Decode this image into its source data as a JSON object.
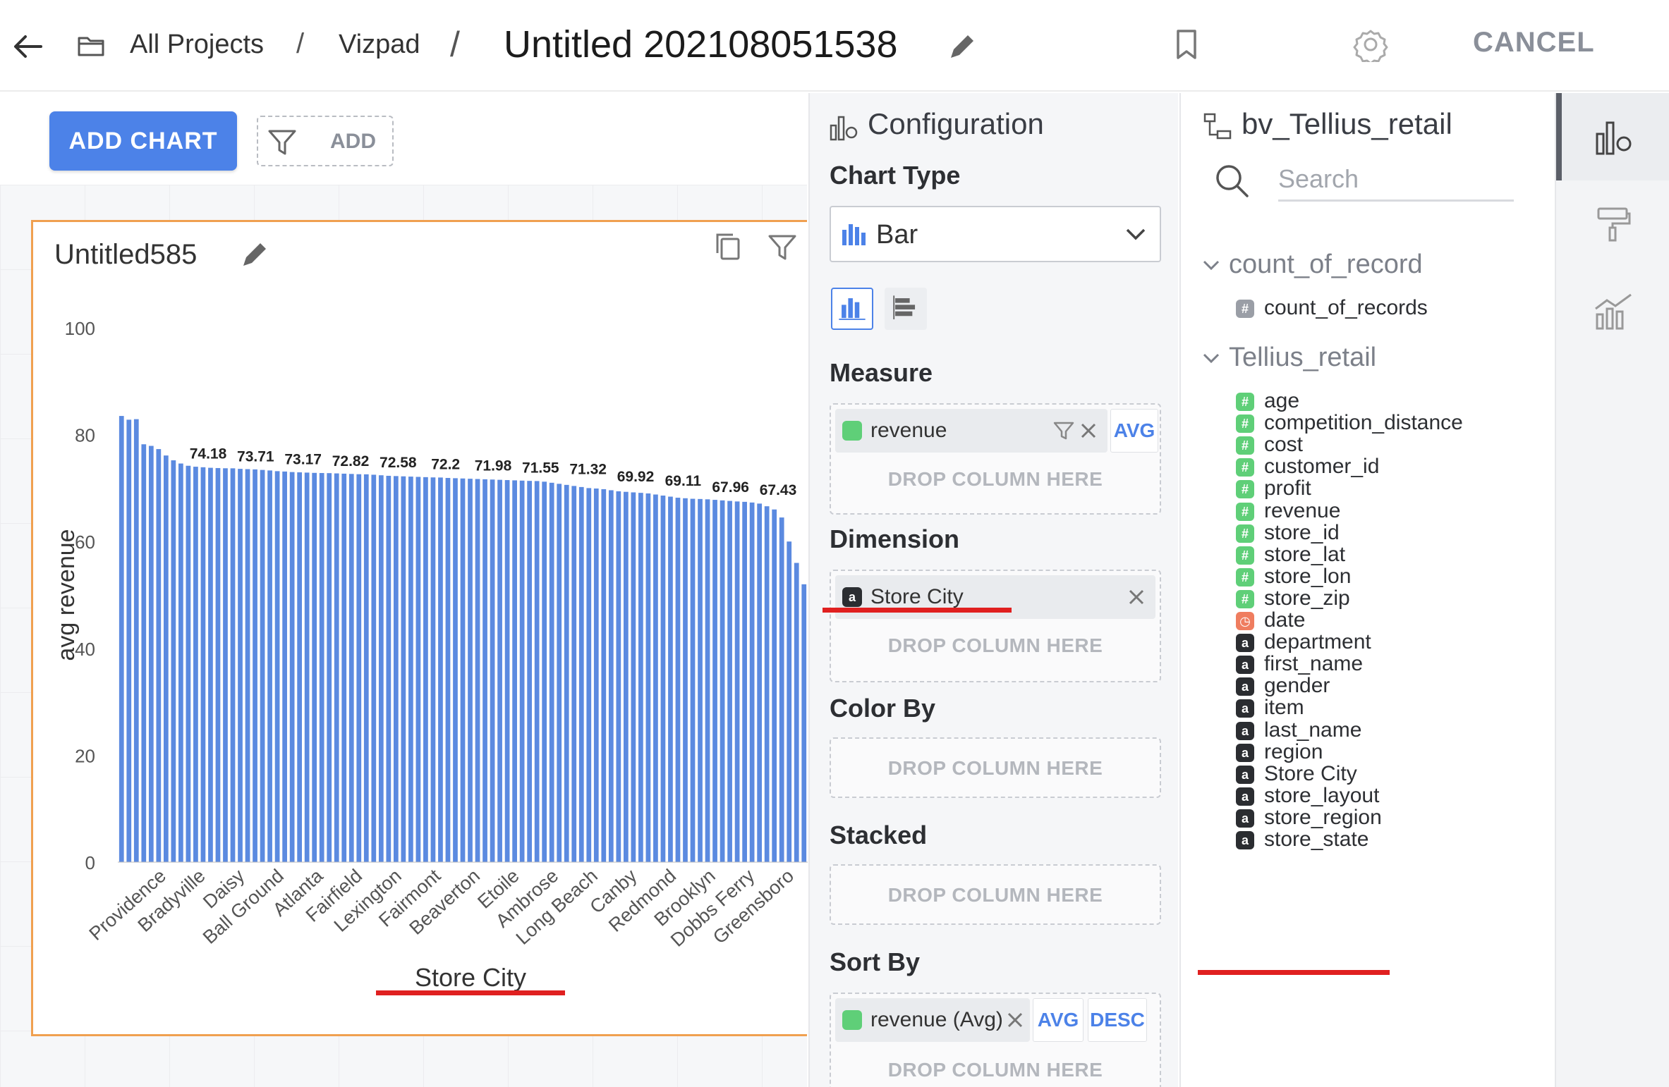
{
  "topbar": {
    "crumb_all_projects": "All Projects",
    "crumb_sep": "/",
    "crumb_vizpad": "Vizpad",
    "title": "Untitled 202108051538",
    "cancel_label": "CANCEL"
  },
  "canvas": {
    "add_chart_label": "ADD CHART",
    "add_filter_label": "ADD"
  },
  "chart_card": {
    "title": "Untitled585"
  },
  "chart_data": {
    "type": "bar",
    "xlabel": "Store City",
    "ylabel": "avg revenue",
    "ylim": [
      0,
      100
    ],
    "yticks": [
      0,
      20,
      40,
      60,
      80,
      100
    ],
    "tick_labels": [
      "Providence",
      "Bradyville",
      "Daisy",
      "Ball Ground",
      "Atlanta",
      "Fairfield",
      "Lexington",
      "Fairmont",
      "Beaverton",
      "Etoile",
      "Ambrose",
      "Long Beach",
      "Canby",
      "Redmond",
      "Brooklyn",
      "Dobbs Ferry",
      "Greensboro"
    ],
    "data_labels": [
      {
        "text": "74.18",
        "value": 74.18
      },
      {
        "text": "73.71",
        "value": 73.71
      },
      {
        "text": "73.17",
        "value": 73.17
      },
      {
        "text": "72.82",
        "value": 72.82
      },
      {
        "text": "72.58",
        "value": 72.58
      },
      {
        "text": "72.2",
        "value": 72.2
      },
      {
        "text": "71.98",
        "value": 71.98
      },
      {
        "text": "71.55",
        "value": 71.55
      },
      {
        "text": "71.32",
        "value": 71.32
      },
      {
        "text": "69.92",
        "value": 69.92
      },
      {
        "text": "69.11",
        "value": 69.11
      },
      {
        "text": "67.96",
        "value": 67.96
      },
      {
        "text": "67.43",
        "value": 67.43
      }
    ],
    "values": [
      83.5,
      82.8,
      82.9,
      78.2,
      77.9,
      77.3,
      76.1,
      75.2,
      74.6,
      74.18,
      74.0,
      73.9,
      73.8,
      73.75,
      73.71,
      73.7,
      73.6,
      73.55,
      73.5,
      73.4,
      73.3,
      73.17,
      73.1,
      73.0,
      72.95,
      72.9,
      72.85,
      72.82,
      72.8,
      72.75,
      72.7,
      72.65,
      72.6,
      72.58,
      72.5,
      72.4,
      72.3,
      72.25,
      72.2,
      72.15,
      72.1,
      72.05,
      72.0,
      71.98,
      71.9,
      71.85,
      71.8,
      71.75,
      71.7,
      71.65,
      71.6,
      71.55,
      71.5,
      71.45,
      71.4,
      71.35,
      71.32,
      71.2,
      71.0,
      70.8,
      70.6,
      70.4,
      70.2,
      70.0,
      69.92,
      69.8,
      69.6,
      69.4,
      69.3,
      69.2,
      69.11,
      69.0,
      68.8,
      68.6,
      68.4,
      68.2,
      68.1,
      68.0,
      67.96,
      67.9,
      67.8,
      67.7,
      67.6,
      67.5,
      67.43,
      67.3,
      67.1,
      66.6,
      66.0,
      64.5,
      60.0,
      56.0,
      52.0
    ]
  },
  "config": {
    "header": "Configuration",
    "chart_type_label": "Chart Type",
    "chart_type_value": "Bar",
    "measure_label": "Measure",
    "measure_pill": "revenue",
    "measure_agg": "AVG",
    "dimension_label": "Dimension",
    "dimension_pill": "Store City",
    "color_by_label": "Color By",
    "stacked_label": "Stacked",
    "sort_by_label": "Sort By",
    "sort_pill": "revenue (Avg)",
    "sort_agg": "AVG",
    "sort_dir": "DESC",
    "drop_text": "DROP COLUMN HERE"
  },
  "datapanel": {
    "header": "bv_Tellius_retail",
    "search_placeholder": "Search",
    "groups": [
      {
        "name": "count_of_record",
        "fields": [
          {
            "name": "count_of_records",
            "kind": "num-grey"
          }
        ]
      },
      {
        "name": "Tellius_retail",
        "fields": [
          {
            "name": "age",
            "kind": "num"
          },
          {
            "name": "competition_distance",
            "kind": "num"
          },
          {
            "name": "cost",
            "kind": "num"
          },
          {
            "name": "customer_id",
            "kind": "num"
          },
          {
            "name": "profit",
            "kind": "num"
          },
          {
            "name": "revenue",
            "kind": "num"
          },
          {
            "name": "store_id",
            "kind": "num"
          },
          {
            "name": "store_lat",
            "kind": "num"
          },
          {
            "name": "store_lon",
            "kind": "num"
          },
          {
            "name": "store_zip",
            "kind": "num"
          },
          {
            "name": "date",
            "kind": "date"
          },
          {
            "name": "department",
            "kind": "str"
          },
          {
            "name": "first_name",
            "kind": "str"
          },
          {
            "name": "gender",
            "kind": "str"
          },
          {
            "name": "item",
            "kind": "str"
          },
          {
            "name": "last_name",
            "kind": "str"
          },
          {
            "name": "region",
            "kind": "str"
          },
          {
            "name": "Store City",
            "kind": "str"
          },
          {
            "name": "store_layout",
            "kind": "str"
          },
          {
            "name": "store_region",
            "kind": "str"
          },
          {
            "name": "store_state",
            "kind": "str"
          }
        ]
      }
    ]
  },
  "icon_glyphs": {
    "num": "#",
    "num-grey": "#",
    "date": "◷",
    "str": "a"
  },
  "colors": {
    "accent": "#4c82e8",
    "bar": "#5b8ae0",
    "card_border": "#f0a050",
    "highlight": "#e02020"
  }
}
